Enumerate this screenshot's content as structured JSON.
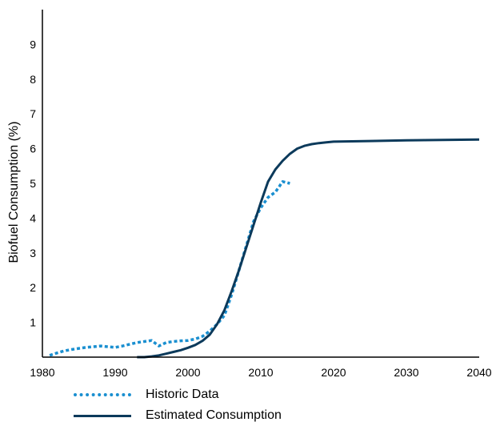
{
  "chart_data": {
    "type": "line",
    "title": "",
    "xlabel": "",
    "ylabel": "Biofuel Consumption (%)",
    "xlim": [
      1980,
      2040
    ],
    "ylim": [
      0,
      10
    ],
    "xticks": [
      1980,
      1990,
      2000,
      2010,
      2020,
      2030,
      2040
    ],
    "yticks": [
      1,
      2,
      3,
      4,
      5,
      6,
      7,
      8,
      9
    ],
    "grid": false,
    "legend_position": "bottom",
    "series": [
      {
        "name": "Historic Data",
        "style": "dotted",
        "color": "#1a8fd0",
        "x": [
          1981,
          1982,
          1983,
          1984,
          1985,
          1986,
          1987,
          1988,
          1989,
          1990,
          1991,
          1992,
          1993,
          1994,
          1995,
          1996,
          1997,
          1998,
          1999,
          2000,
          2001,
          2002,
          2003,
          2004,
          2005,
          2006,
          2007,
          2008,
          2009,
          2010,
          2011,
          2012,
          2013,
          2014
        ],
        "y": [
          0.05,
          0.12,
          0.18,
          0.22,
          0.25,
          0.28,
          0.3,
          0.32,
          0.3,
          0.28,
          0.32,
          0.37,
          0.42,
          0.45,
          0.48,
          0.32,
          0.42,
          0.45,
          0.47,
          0.48,
          0.52,
          0.6,
          0.75,
          0.95,
          1.2,
          1.8,
          2.5,
          3.2,
          3.9,
          4.3,
          4.6,
          4.75,
          5.05,
          5.0
        ]
      },
      {
        "name": "Estimated Consumption",
        "style": "solid",
        "color": "#0c3a5b",
        "x": [
          1993,
          1994,
          1995,
          1996,
          1997,
          1998,
          1999,
          2000,
          2001,
          2002,
          2003,
          2004,
          2005,
          2006,
          2007,
          2008,
          2009,
          2010,
          2011,
          2012,
          2013,
          2014,
          2015,
          2016,
          2017,
          2018,
          2019,
          2020,
          2025,
          2030,
          2035,
          2040
        ],
        "y": [
          0.0,
          0.0,
          0.02,
          0.05,
          0.1,
          0.15,
          0.2,
          0.27,
          0.35,
          0.47,
          0.65,
          0.95,
          1.35,
          1.9,
          2.5,
          3.15,
          3.8,
          4.45,
          5.05,
          5.4,
          5.65,
          5.85,
          6.0,
          6.08,
          6.13,
          6.16,
          6.18,
          6.2,
          6.22,
          6.24,
          6.25,
          6.26
        ]
      }
    ]
  }
}
